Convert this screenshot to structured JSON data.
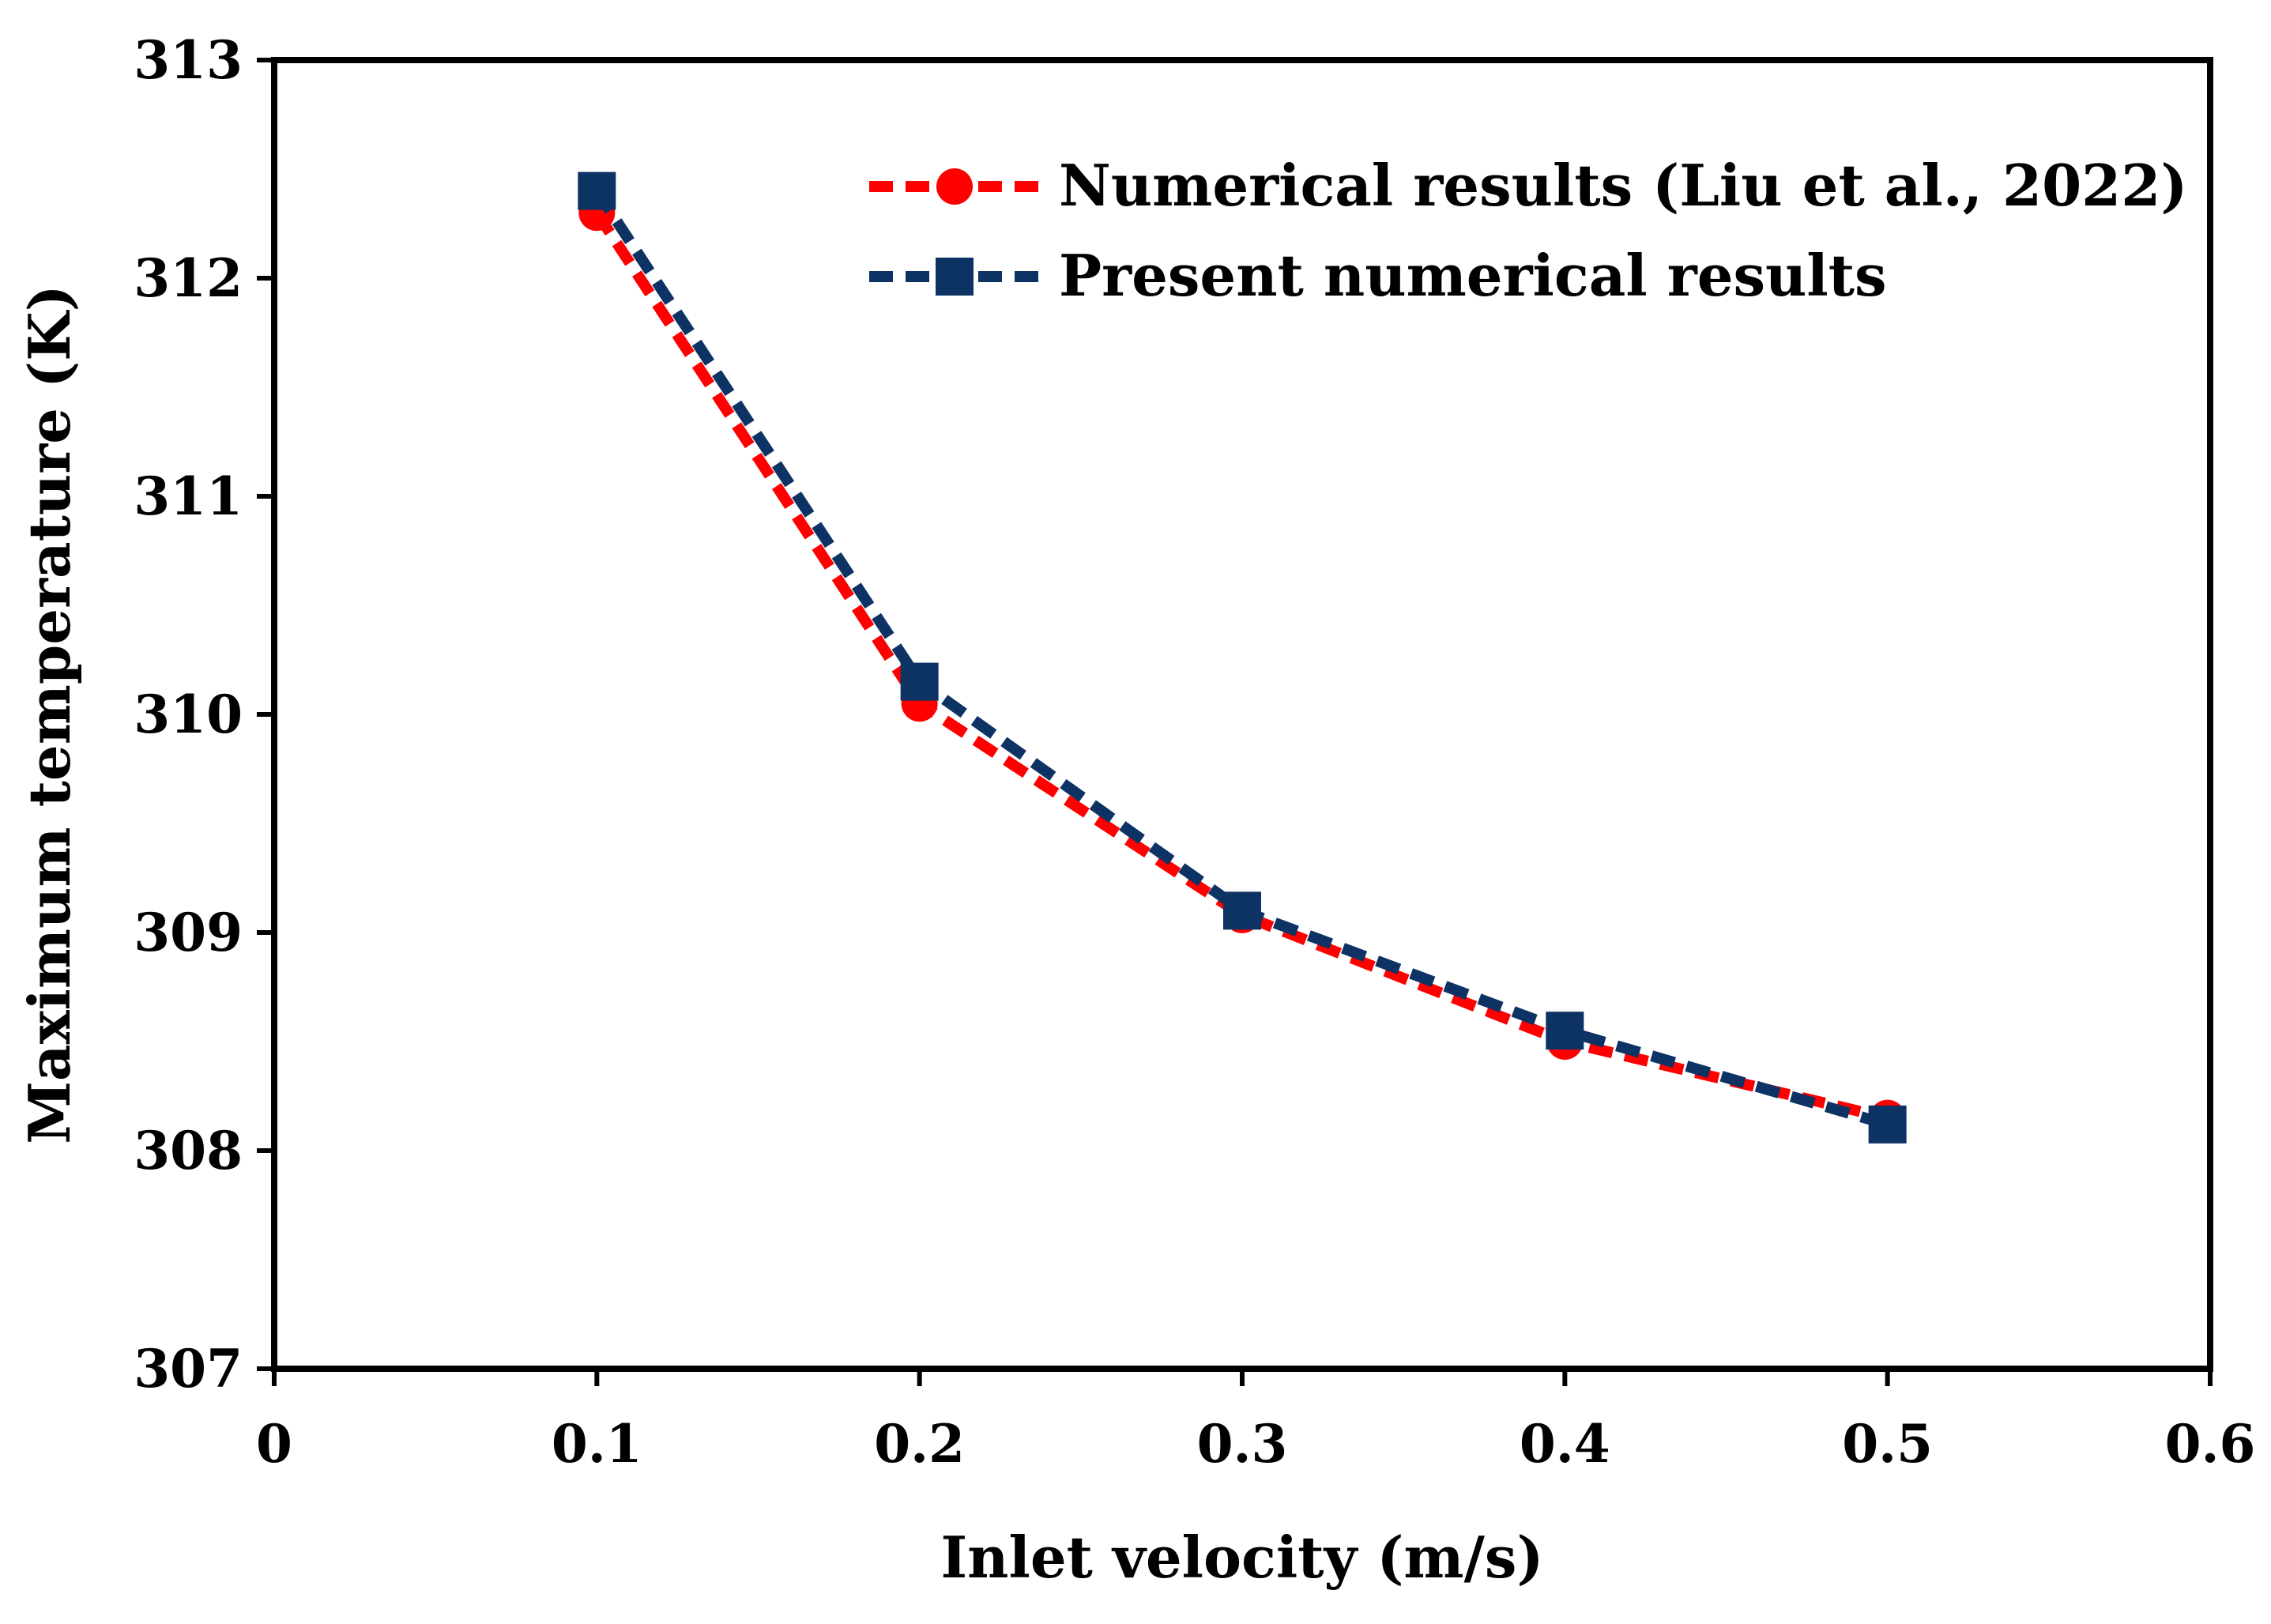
{
  "chart_data": {
    "type": "line",
    "title": "",
    "xlabel": "Inlet velocity (m/s)",
    "ylabel": "Maximum temperature  (K)",
    "xlim": [
      0,
      0.6
    ],
    "ylim": [
      307,
      313
    ],
    "xticks": [
      "0",
      "0.1",
      "0.2",
      "0.3",
      "0.4",
      "0.5",
      "0.6"
    ],
    "yticks": [
      "307",
      "308",
      "309",
      "310",
      "311",
      "312",
      "313"
    ],
    "grid": false,
    "legend_position": "top-right",
    "x": [
      0.1,
      0.2,
      0.3,
      0.4,
      0.5
    ],
    "series": [
      {
        "name": "Numerical results (Liu et al., 2022)",
        "marker": "circle",
        "color": "#ff0000",
        "values": [
          312.3,
          310.05,
          309.08,
          308.5,
          308.15
        ]
      },
      {
        "name": "Present numerical results",
        "marker": "square",
        "color": "#0d3264",
        "values": [
          312.4,
          310.15,
          309.1,
          308.55,
          308.12
        ]
      }
    ]
  }
}
